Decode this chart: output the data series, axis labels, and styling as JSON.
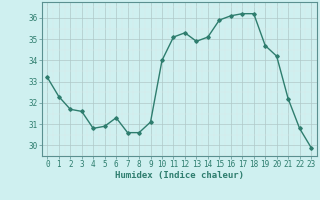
{
  "x": [
    0,
    1,
    2,
    3,
    4,
    5,
    6,
    7,
    8,
    9,
    10,
    11,
    12,
    13,
    14,
    15,
    16,
    17,
    18,
    19,
    20,
    21,
    22,
    23
  ],
  "y": [
    33.2,
    32.3,
    31.7,
    31.6,
    30.8,
    30.9,
    31.3,
    30.6,
    30.6,
    31.1,
    34.0,
    35.1,
    35.3,
    34.9,
    35.1,
    35.9,
    36.1,
    36.2,
    36.2,
    34.7,
    34.2,
    32.2,
    30.8,
    29.9
  ],
  "line_color": "#2e7d6e",
  "marker": "D",
  "marker_size": 1.8,
  "linewidth": 1.0,
  "bg_color": "#cff0f0",
  "grid_major_color": "#b0c8c8",
  "grid_minor_color": "#dde8e8",
  "xlabel": "Humidex (Indice chaleur)",
  "xlabel_fontsize": 6.5,
  "xlabel_color": "#2e7d6e",
  "ylim": [
    29.5,
    36.75
  ],
  "yticks": [
    30,
    31,
    32,
    33,
    34,
    35,
    36
  ],
  "xlim": [
    -0.5,
    23.5
  ],
  "tick_fontsize": 5.5,
  "tick_color": "#2e7d6e",
  "spine_color": "#5a9090"
}
